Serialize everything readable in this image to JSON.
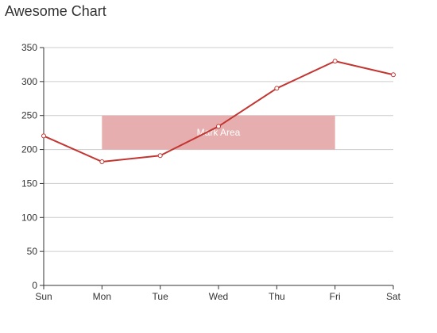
{
  "chart_data": {
    "type": "line",
    "title": "Awesome Chart",
    "categories": [
      "Sun",
      "Mon",
      "Tue",
      "Wed",
      "Thu",
      "Fri",
      "Sat"
    ],
    "series": [
      {
        "values": [
          220,
          182,
          191,
          234,
          290,
          330,
          310
        ]
      }
    ],
    "ylim": [
      0,
      350
    ],
    "yticks": [
      0,
      50,
      100,
      150,
      200,
      250,
      300,
      350
    ],
    "grid": true,
    "mark_area": {
      "label": "Mark Area",
      "x_from": "Mon",
      "x_to": "Fri",
      "y_from": 200,
      "y_to": 250
    },
    "colors": {
      "line": "#c23531",
      "mark_area": "#e6aeae",
      "grid": "#cccccc",
      "axis": "#333333"
    }
  }
}
